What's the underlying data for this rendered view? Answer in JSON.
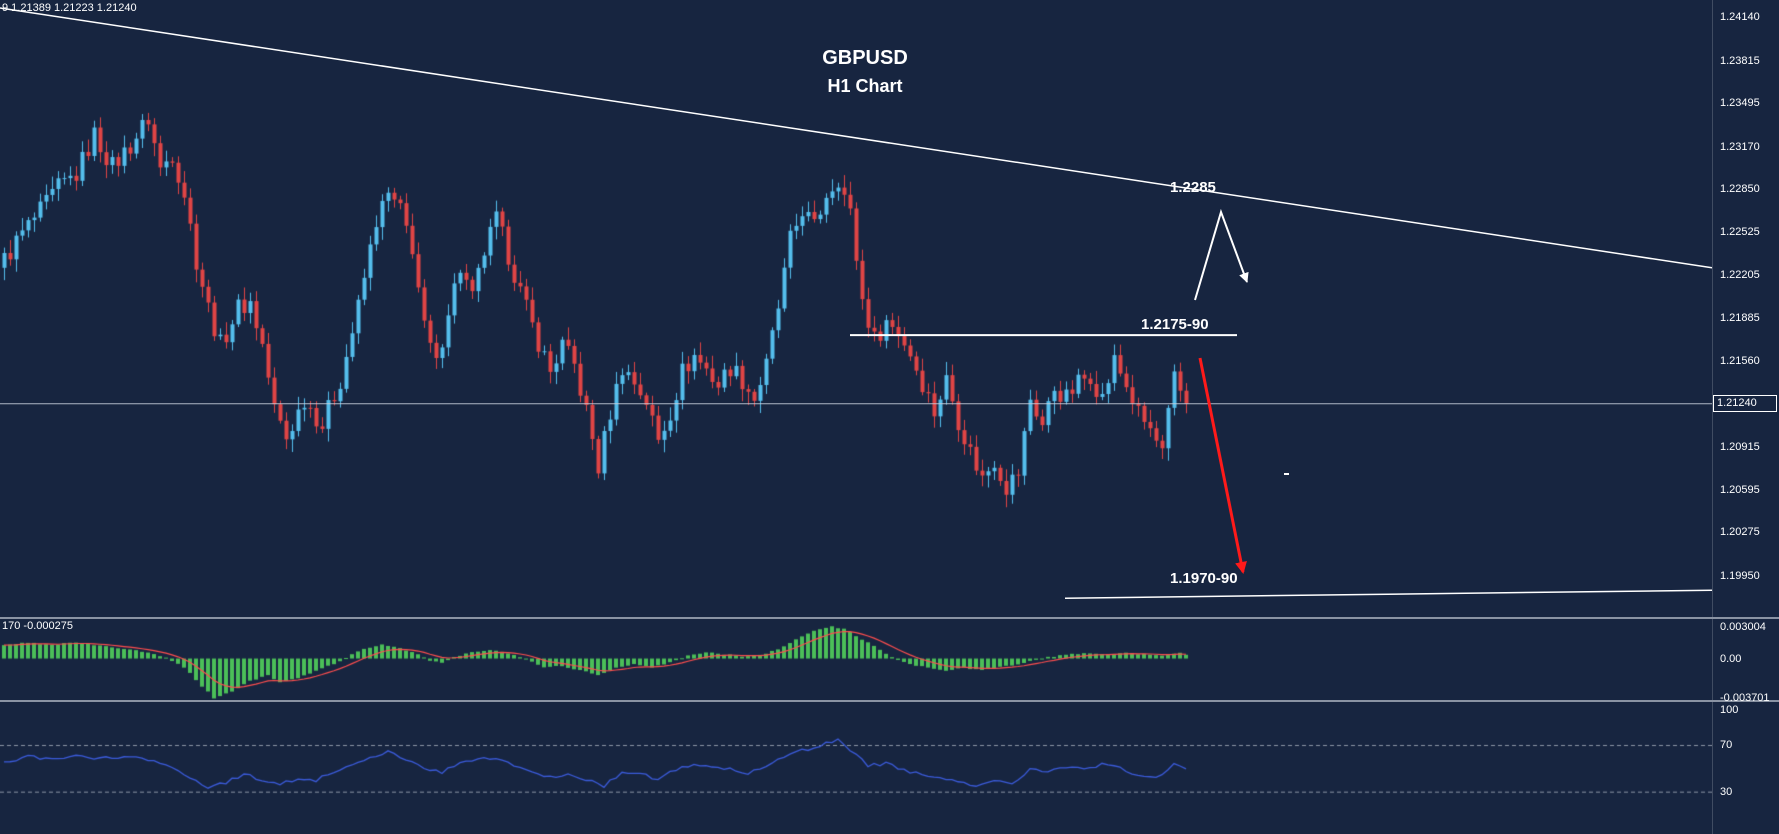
{
  "window": {
    "background": "#172540",
    "axis_text_color": "#FFFFFF",
    "separator_color": "#8A93A3"
  },
  "header": {
    "quote_line": "9 1.21389 1.21223 1.21240"
  },
  "annotations": {
    "symbol": "GBPUSD",
    "timeframe": "H1 Chart",
    "upper_level": "1.2285",
    "mid_level": "1.2175-90",
    "lower_level": "1.1970-90"
  },
  "price_axis": {
    "labels": [
      "1.24140",
      "1.23815",
      "1.23495",
      "1.23170",
      "1.22850",
      "1.22525",
      "1.22205",
      "1.21885",
      "1.21560",
      "1.21240",
      "1.20915",
      "1.20595",
      "1.20275",
      "1.19950"
    ],
    "current_price": "1.21240"
  },
  "osma_panel": {
    "value_label": "170 -0.000275",
    "axis_labels": [
      "0.003004",
      "0.00",
      "-0.003701"
    ]
  },
  "rsi_panel": {
    "axis_labels": [
      "100",
      "70",
      "30"
    ]
  },
  "chart_data": [
    {
      "type": "candlestick",
      "title": "GBPUSD H1",
      "symbol": "GBPUSD",
      "timeframe": "H1",
      "candle_count": 198,
      "price_range": {
        "top": 1.2427,
        "bottom": 1.19639
      },
      "current_price": 1.2124,
      "close_waypoints": [
        [
          0,
          1.2232
        ],
        [
          3,
          1.2252
        ],
        [
          6,
          1.2268
        ],
        [
          9,
          1.2286
        ],
        [
          12,
          1.2296
        ],
        [
          15,
          1.2326
        ],
        [
          18,
          1.2302
        ],
        [
          21,
          1.2318
        ],
        [
          24,
          1.2338
        ],
        [
          26,
          1.23
        ],
        [
          28,
          1.2312
        ],
        [
          30,
          1.2282
        ],
        [
          32,
          1.2232
        ],
        [
          34,
          1.2196
        ],
        [
          36,
          1.2168
        ],
        [
          39,
          1.2196
        ],
        [
          41,
          1.22
        ],
        [
          43,
          1.2168
        ],
        [
          45,
          1.212
        ],
        [
          47,
          1.2098
        ],
        [
          50,
          1.2128
        ],
        [
          53,
          1.2108
        ],
        [
          56,
          1.2142
        ],
        [
          59,
          1.2196
        ],
        [
          62,
          1.2262
        ],
        [
          64,
          1.228
        ],
        [
          66,
          1.2268
        ],
        [
          68,
          1.2242
        ],
        [
          70,
          1.218
        ],
        [
          72,
          1.2152
        ],
        [
          74,
          1.2196
        ],
        [
          76,
          1.2226
        ],
        [
          78,
          1.2202
        ],
        [
          80,
          1.2238
        ],
        [
          82,
          1.2262
        ],
        [
          84,
          1.2236
        ],
        [
          86,
          1.2208
        ],
        [
          88,
          1.2182
        ],
        [
          91,
          1.2148
        ],
        [
          93,
          1.2168
        ],
        [
          95,
          1.2152
        ],
        [
          97,
          1.2118
        ],
        [
          99,
          1.2076
        ],
        [
          101,
          1.2118
        ],
        [
          103,
          1.2152
        ],
        [
          105,
          1.214
        ],
        [
          107,
          1.2126
        ],
        [
          109,
          1.2096
        ],
        [
          111,
          1.2118
        ],
        [
          113,
          1.2148
        ],
        [
          115,
          1.216
        ],
        [
          117,
          1.215
        ],
        [
          119,
          1.2138
        ],
        [
          121,
          1.2152
        ],
        [
          123,
          1.2142
        ],
        [
          125,
          1.2128
        ],
        [
          127,
          1.2152
        ],
        [
          129,
          1.2196
        ],
        [
          131,
          1.2246
        ],
        [
          133,
          1.227
        ],
        [
          135,
          1.2256
        ],
        [
          137,
          1.2282
        ],
        [
          139,
          1.2294
        ],
        [
          141,
          1.2266
        ],
        [
          143,
          1.2202
        ],
        [
          145,
          1.2172
        ],
        [
          147,
          1.2186
        ],
        [
          149,
          1.2178
        ],
        [
          151,
          1.2162
        ],
        [
          153,
          1.214
        ],
        [
          155,
          1.2118
        ],
        [
          157,
          1.2142
        ],
        [
          159,
          1.2112
        ],
        [
          161,
          1.2088
        ],
        [
          163,
          1.2068
        ],
        [
          165,
          1.2082
        ],
        [
          167,
          1.2062
        ],
        [
          169,
          1.2072
        ],
        [
          171,
          1.2128
        ],
        [
          173,
          1.2108
        ],
        [
          175,
          1.2136
        ],
        [
          177,
          1.2128
        ],
        [
          179,
          1.214
        ],
        [
          181,
          1.2146
        ],
        [
          183,
          1.2128
        ],
        [
          185,
          1.2156
        ],
        [
          187,
          1.2138
        ],
        [
          189,
          1.2116
        ],
        [
          191,
          1.2104
        ],
        [
          193,
          1.2086
        ],
        [
          195,
          1.2142
        ],
        [
          197,
          1.2124
        ]
      ],
      "colors": {
        "up": "#55BEEC",
        "down": "#E04545",
        "current_price_line": "#C9D2DE",
        "trendline": "#FFFFFF",
        "projection_arrow": "#FF1A1A"
      },
      "overlays": {
        "trendline": {
          "label": "descending resistance trendline",
          "from_price": 1.2421,
          "to_price": 1.2226
        },
        "resistance_line": {
          "price": 1.21755,
          "label": "1.2175-90"
        },
        "support_line": {
          "from_price": 1.1978,
          "to_price": 1.1984,
          "label": "1.1970-90"
        },
        "projection": "touch 1.2285 trendline then decline toward 1.1970-90"
      }
    },
    {
      "type": "bar",
      "name": "OsMA",
      "range": {
        "max": 0.003004,
        "min": -0.003701
      },
      "waypoints": [
        [
          0,
          0.0012
        ],
        [
          4,
          0.0015
        ],
        [
          8,
          0.0013
        ],
        [
          12,
          0.0015
        ],
        [
          16,
          0.0012
        ],
        [
          20,
          0.0009
        ],
        [
          24,
          0.0006
        ],
        [
          27,
          0.0001
        ],
        [
          30,
          -0.0008
        ],
        [
          33,
          -0.0026
        ],
        [
          35,
          -0.0037
        ],
        [
          38,
          -0.0031
        ],
        [
          41,
          -0.0021
        ],
        [
          44,
          -0.0016
        ],
        [
          46,
          -0.0022
        ],
        [
          49,
          -0.0019
        ],
        [
          52,
          -0.0011
        ],
        [
          55,
          -0.0005
        ],
        [
          57,
          0.0001
        ],
        [
          60,
          0.0009
        ],
        [
          63,
          0.0013
        ],
        [
          66,
          0.001
        ],
        [
          69,
          0.0004
        ],
        [
          71,
          -0.0002
        ],
        [
          73,
          -0.0004
        ],
        [
          75,
          0.0001
        ],
        [
          78,
          0.0006
        ],
        [
          81,
          0.0008
        ],
        [
          84,
          0.0005
        ],
        [
          87,
          0.0
        ],
        [
          90,
          -0.0008
        ],
        [
          93,
          -0.0007
        ],
        [
          96,
          -0.0011
        ],
        [
          99,
          -0.0015
        ],
        [
          102,
          -0.0009
        ],
        [
          105,
          -0.0005
        ],
        [
          108,
          -0.0008
        ],
        [
          111,
          -0.0004
        ],
        [
          114,
          0.0003
        ],
        [
          117,
          0.0006
        ],
        [
          120,
          0.0004
        ],
        [
          123,
          0.0002
        ],
        [
          126,
          0.0003
        ],
        [
          129,
          0.0009
        ],
        [
          132,
          0.0018
        ],
        [
          135,
          0.0026
        ],
        [
          138,
          0.003
        ],
        [
          140,
          0.0028
        ],
        [
          143,
          0.0018
        ],
        [
          146,
          0.0008
        ],
        [
          148,
          0.0001
        ],
        [
          151,
          -0.0005
        ],
        [
          154,
          -0.0009
        ],
        [
          157,
          -0.0011
        ],
        [
          160,
          -0.0009
        ],
        [
          163,
          -0.0011
        ],
        [
          166,
          -0.0008
        ],
        [
          169,
          -0.0005
        ],
        [
          172,
          -0.0001
        ],
        [
          175,
          0.0002
        ],
        [
          178,
          0.0004
        ],
        [
          181,
          0.0005
        ],
        [
          184,
          0.0004
        ],
        [
          187,
          0.0006
        ],
        [
          190,
          0.0004
        ],
        [
          193,
          0.0003
        ],
        [
          196,
          0.0005
        ],
        [
          197,
          0.0004
        ]
      ],
      "colors": {
        "bars": "#4BBF58",
        "signal": "#FF4D4D"
      }
    },
    {
      "type": "line",
      "name": "RSI",
      "range": {
        "max": 100,
        "min": 0
      },
      "levels": [
        70,
        30
      ],
      "waypoints": [
        [
          0,
          55
        ],
        [
          4,
          60
        ],
        [
          8,
          57
        ],
        [
          12,
          61
        ],
        [
          16,
          58
        ],
        [
          20,
          60
        ],
        [
          24,
          57
        ],
        [
          28,
          50
        ],
        [
          32,
          40
        ],
        [
          34,
          34
        ],
        [
          37,
          38
        ],
        [
          40,
          45
        ],
        [
          43,
          40
        ],
        [
          46,
          36
        ],
        [
          49,
          42
        ],
        [
          52,
          40
        ],
        [
          55,
          47
        ],
        [
          58,
          53
        ],
        [
          61,
          60
        ],
        [
          64,
          64
        ],
        [
          67,
          58
        ],
        [
          70,
          50
        ],
        [
          73,
          47
        ],
        [
          76,
          54
        ],
        [
          79,
          57
        ],
        [
          82,
          59
        ],
        [
          85,
          52
        ],
        [
          88,
          46
        ],
        [
          91,
          42
        ],
        [
          94,
          46
        ],
        [
          97,
          40
        ],
        [
          100,
          35
        ],
        [
          103,
          47
        ],
        [
          106,
          45
        ],
        [
          109,
          41
        ],
        [
          112,
          49
        ],
        [
          115,
          54
        ],
        [
          118,
          51
        ],
        [
          121,
          49
        ],
        [
          124,
          46
        ],
        [
          127,
          51
        ],
        [
          130,
          60
        ],
        [
          133,
          65
        ],
        [
          136,
          70
        ],
        [
          139,
          74
        ],
        [
          141,
          66
        ],
        [
          144,
          52
        ],
        [
          147,
          54
        ],
        [
          150,
          49
        ],
        [
          153,
          44
        ],
        [
          156,
          41
        ],
        [
          159,
          38
        ],
        [
          162,
          36
        ],
        [
          165,
          40
        ],
        [
          168,
          37
        ],
        [
          171,
          49
        ],
        [
          174,
          47
        ],
        [
          177,
          51
        ],
        [
          180,
          49
        ],
        [
          183,
          53
        ],
        [
          186,
          50
        ],
        [
          189,
          44
        ],
        [
          192,
          42
        ],
        [
          195,
          53
        ],
        [
          197,
          50
        ]
      ],
      "colors": {
        "line": "#3B5BDB",
        "levels": "#8D97A6"
      }
    }
  ]
}
